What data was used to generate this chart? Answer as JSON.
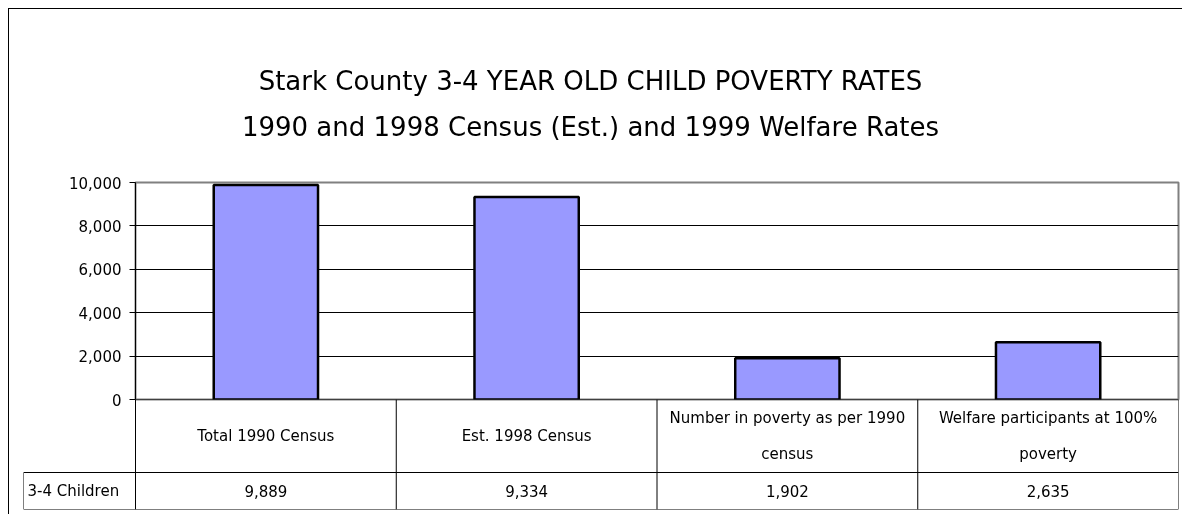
{
  "chart_data": {
    "type": "bar",
    "title": "Stark County 3-4 YEAR OLD CHILD POVERTY RATES",
    "subtitle": "1990 and 1998 Census (Est.) and 1999 Welfare Rates",
    "categories": [
      "Total 1990 Census",
      "Est. 1998 Census",
      "Number in poverty as per 1990 census",
      "Welfare participants at 100% poverty"
    ],
    "series": [
      {
        "name": "3-4 Children",
        "color": "#9999ff",
        "values": [
          9889,
          9334,
          1902,
          2635
        ],
        "value_labels": [
          "9,889",
          "9,334",
          "1,902",
          "2,635"
        ]
      }
    ],
    "ylim": [
      0,
      10000
    ],
    "yticks": [
      0,
      {
        "value": 2000,
        "label": "2,000"
      },
      {
        "value": 4000,
        "label": "4,000"
      },
      {
        "value": 6000,
        "label": "6,000"
      },
      {
        "value": 8000,
        "label": "8,000"
      },
      {
        "value": 10000,
        "label": "10,000"
      }
    ],
    "grid": "y"
  }
}
